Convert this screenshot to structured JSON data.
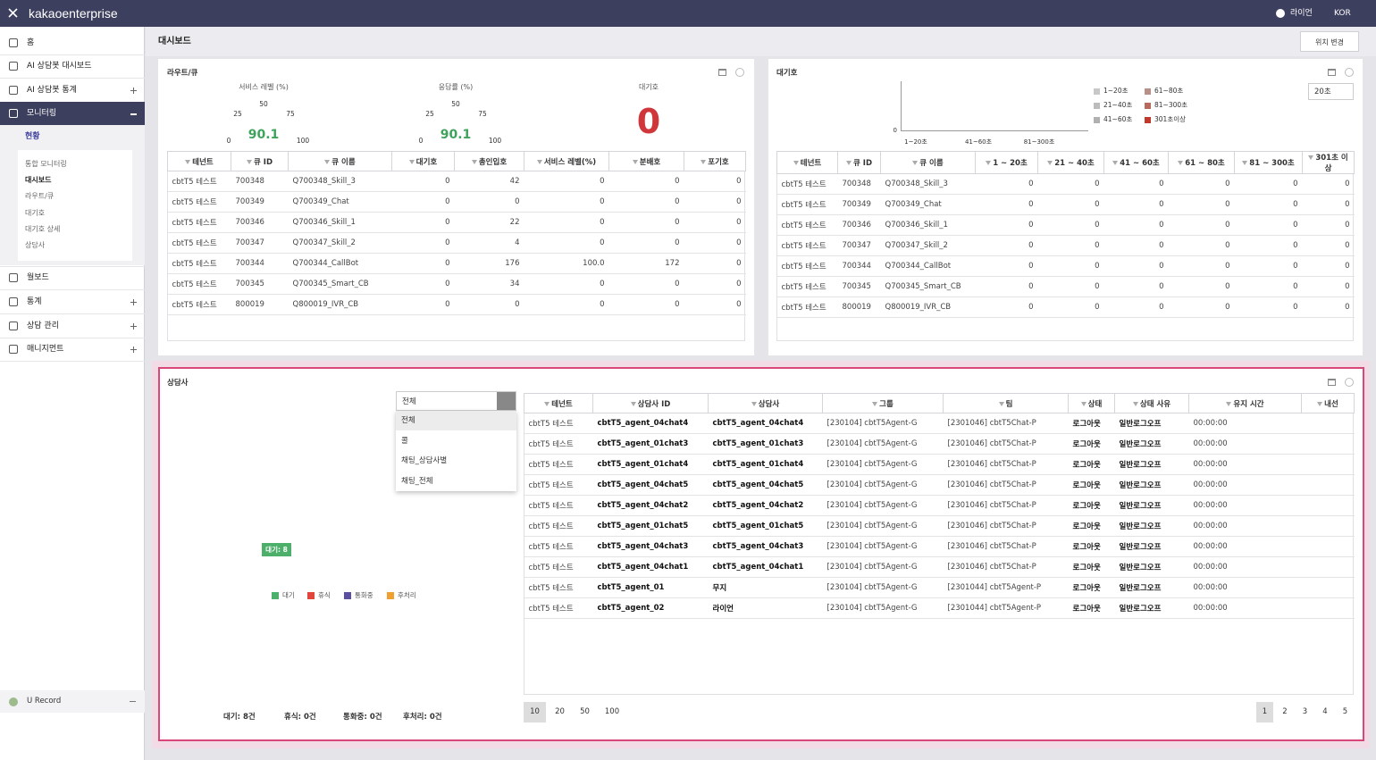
{
  "header": {
    "logo": "kakaoenterprise",
    "user": "라이언",
    "lang": "KOR"
  },
  "sidebar": {
    "items": [
      "홈",
      "AI 상담봇 대시보드",
      "AI 상담봇 통계",
      "모니터링"
    ],
    "current": "현황",
    "subitems": [
      "통합 모니터링",
      "대시보드",
      "라우트/큐",
      "대기호",
      "대기호 상세",
      "상담사"
    ],
    "items2": [
      "월보드",
      "통계",
      "상담 관리",
      "매니지먼트"
    ],
    "footer": "U Record"
  },
  "page": {
    "title": "대시보드",
    "button": "위치 변경"
  },
  "route": {
    "title": "라우트/큐",
    "gauges": [
      {
        "label": "서비스 레벨 (%)",
        "value": 90.1,
        "ticks": [
          "0",
          "25",
          "50",
          "75",
          "100"
        ]
      },
      {
        "label": "응답률 (%)",
        "value": 90.1,
        "ticks": [
          "0",
          "25",
          "50",
          "75",
          "100"
        ]
      }
    ],
    "wait": {
      "label": "대기호",
      "value": "0"
    },
    "columns": [
      "테넌트",
      "큐 ID",
      "큐 이름",
      "대기호",
      "총인입호",
      "서비스 레벨(%)",
      "분배호",
      "포기호"
    ],
    "rows": [
      [
        "cbtT5 테스트",
        "700348",
        "Q700348_Skill_3",
        "0",
        "42",
        "0",
        "0",
        "0"
      ],
      [
        "cbtT5 테스트",
        "700349",
        "Q700349_Chat",
        "0",
        "0",
        "0",
        "0",
        "0"
      ],
      [
        "cbtT5 테스트",
        "700346",
        "Q700346_Skill_1",
        "0",
        "22",
        "0",
        "0",
        "0"
      ],
      [
        "cbtT5 테스트",
        "700347",
        "Q700347_Skill_2",
        "0",
        "4",
        "0",
        "0",
        "0"
      ],
      [
        "cbtT5 테스트",
        "700344",
        "Q700344_CallBot",
        "0",
        "176",
        "100.0",
        "172",
        "0"
      ],
      [
        "cbtT5 테스트",
        "700345",
        "Q700345_Smart_CB",
        "0",
        "34",
        "0",
        "0",
        "0"
      ],
      [
        "cbtT5 테스트",
        "800019",
        "Q800019_IVR_CB",
        "0",
        "0",
        "0",
        "0",
        "0"
      ]
    ]
  },
  "waiting": {
    "title": "대기호",
    "select": "20초",
    "legend": [
      {
        "name": "1~20초",
        "color": "#c8c8c8"
      },
      {
        "name": "61~80초",
        "color": "#b89088"
      },
      {
        "name": "21~40초",
        "color": "#bcbcbc"
      },
      {
        "name": "81~300초",
        "color": "#b86a5c"
      },
      {
        "name": "41~60초",
        "color": "#b0b0b0"
      },
      {
        "name": "301초이상",
        "color": "#c0392b"
      }
    ],
    "y_tick": "0",
    "x_ticks": [
      "1~20초",
      "41~60초",
      "81~300초"
    ],
    "columns": [
      "테넌트",
      "큐 ID",
      "큐 이름",
      "1 ~ 20초",
      "21 ~ 40초",
      "41 ~ 60초",
      "61 ~ 80초",
      "81 ~ 300초",
      "301초 이상"
    ],
    "rows": [
      [
        "cbtT5 테스트",
        "700348",
        "Q700348_Skill_3",
        "0",
        "0",
        "0",
        "0",
        "0",
        "0"
      ],
      [
        "cbtT5 테스트",
        "700349",
        "Q700349_Chat",
        "0",
        "0",
        "0",
        "0",
        "0",
        "0"
      ],
      [
        "cbtT5 테스트",
        "700346",
        "Q700346_Skill_1",
        "0",
        "0",
        "0",
        "0",
        "0",
        "0"
      ],
      [
        "cbtT5 테스트",
        "700347",
        "Q700347_Skill_2",
        "0",
        "0",
        "0",
        "0",
        "0",
        "0"
      ],
      [
        "cbtT5 테스트",
        "700344",
        "Q700344_CallBot",
        "0",
        "0",
        "0",
        "0",
        "0",
        "0"
      ],
      [
        "cbtT5 테스트",
        "700345",
        "Q700345_Smart_CB",
        "0",
        "0",
        "0",
        "0",
        "0",
        "0"
      ],
      [
        "cbtT5 테스트",
        "800019",
        "Q800019_IVR_CB",
        "0",
        "0",
        "0",
        "0",
        "0",
        "0"
      ]
    ]
  },
  "agents": {
    "title": "상담사",
    "select": "전체",
    "options": [
      "전체",
      "콜",
      "채팅_상담사별",
      "채팅_전체"
    ],
    "donut_label": "대기: 8",
    "legend": [
      {
        "name": "대기",
        "color": "#4caf6a"
      },
      {
        "name": "휴식",
        "color": "#e0463c"
      },
      {
        "name": "통화중",
        "color": "#5a4fa0"
      },
      {
        "name": "후처리",
        "color": "#f0a030"
      }
    ],
    "summary": [
      "대기: 8건",
      "휴식: 0건",
      "통화중: 0건",
      "후처리: 0건"
    ],
    "columns": [
      "테넌트",
      "상담사 ID",
      "상담사",
      "그룹",
      "팀",
      "상태",
      "상태 사유",
      "유지 시간",
      "내선"
    ],
    "rows": [
      [
        "cbtT5 테스트",
        "cbtT5_agent_04chat4",
        "cbtT5_agent_04chat4",
        "[230104] cbtT5Agent-G",
        "[2301046] cbtT5Chat-P",
        "로그아웃",
        "일반로그오프",
        "00:00:00"
      ],
      [
        "cbtT5 테스트",
        "cbtT5_agent_01chat3",
        "cbtT5_agent_01chat3",
        "[230104] cbtT5Agent-G",
        "[2301046] cbtT5Chat-P",
        "로그아웃",
        "일반로그오프",
        "00:00:00"
      ],
      [
        "cbtT5 테스트",
        "cbtT5_agent_01chat4",
        "cbtT5_agent_01chat4",
        "[230104] cbtT5Agent-G",
        "[2301046] cbtT5Chat-P",
        "로그아웃",
        "일반로그오프",
        "00:00:00"
      ],
      [
        "cbtT5 테스트",
        "cbtT5_agent_04chat5",
        "cbtT5_agent_04chat5",
        "[230104] cbtT5Agent-G",
        "[2301046] cbtT5Chat-P",
        "로그아웃",
        "일반로그오프",
        "00:00:00"
      ],
      [
        "cbtT5 테스트",
        "cbtT5_agent_04chat2",
        "cbtT5_agent_04chat2",
        "[230104] cbtT5Agent-G",
        "[2301046] cbtT5Chat-P",
        "로그아웃",
        "일반로그오프",
        "00:00:00"
      ],
      [
        "cbtT5 테스트",
        "cbtT5_agent_01chat5",
        "cbtT5_agent_01chat5",
        "[230104] cbtT5Agent-G",
        "[2301046] cbtT5Chat-P",
        "로그아웃",
        "일반로그오프",
        "00:00:00"
      ],
      [
        "cbtT5 테스트",
        "cbtT5_agent_04chat3",
        "cbtT5_agent_04chat3",
        "[230104] cbtT5Agent-G",
        "[2301046] cbtT5Chat-P",
        "로그아웃",
        "일반로그오프",
        "00:00:00"
      ],
      [
        "cbtT5 테스트",
        "cbtT5_agent_04chat1",
        "cbtT5_agent_04chat1",
        "[230104] cbtT5Agent-G",
        "[2301046] cbtT5Chat-P",
        "로그아웃",
        "일반로그오프",
        "00:00:00"
      ],
      [
        "cbtT5 테스트",
        "cbtT5_agent_01",
        "무지",
        "[230104] cbtT5Agent-G",
        "[2301044] cbtT5Agent-P",
        "로그아웃",
        "일반로그오프",
        "00:00:00"
      ],
      [
        "cbtT5 테스트",
        "cbtT5_agent_02",
        "라이언",
        "[230104] cbtT5Agent-G",
        "[2301044] cbtT5Agent-P",
        "로그아웃",
        "일반로그오프",
        "00:00:00"
      ]
    ],
    "page_sizes": [
      "10",
      "20",
      "50",
      "100"
    ],
    "pages": [
      "1",
      "2",
      "3",
      "4",
      "5"
    ]
  }
}
